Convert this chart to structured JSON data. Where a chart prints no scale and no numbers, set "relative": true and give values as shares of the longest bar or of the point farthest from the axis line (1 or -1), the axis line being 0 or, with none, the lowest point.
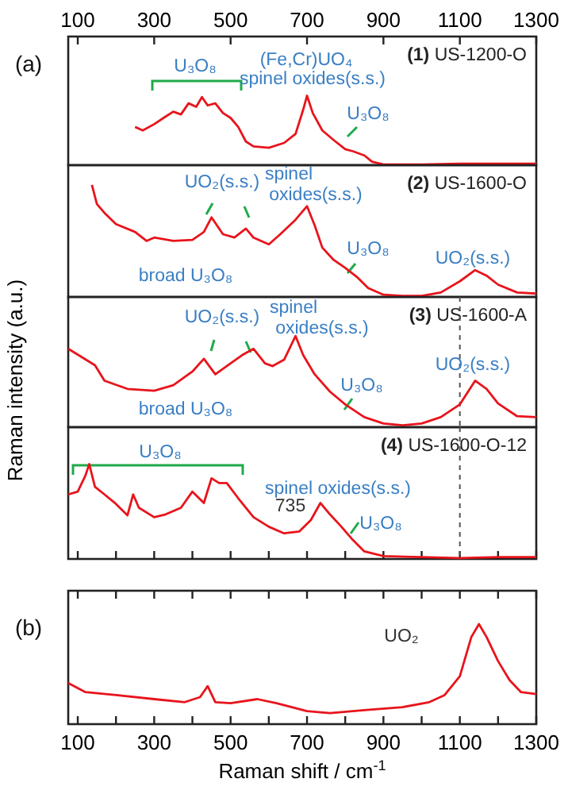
{
  "chart_data": [
    {
      "type": "line",
      "relative": true,
      "title": "(1) US-1200-O",
      "tick_labels": false,
      "xlim": [
        75,
        1300
      ],
      "x2lim": [
        75,
        1300
      ],
      "x2ticks": [
        100,
        300,
        500,
        700,
        900,
        1100,
        1300
      ],
      "series": [
        {
          "color": "#e8141c",
          "x": [
            250,
            270,
            300,
            330,
            350,
            370,
            390,
            410,
            425,
            440,
            460,
            480,
            500,
            520,
            540,
            560,
            600,
            640,
            670,
            690,
            700,
            715,
            740,
            770,
            800,
            820,
            850,
            870,
            900,
            1000,
            1100,
            1200,
            1300
          ],
          "values": [
            0.55,
            0.5,
            0.59,
            0.7,
            0.77,
            0.73,
            0.89,
            0.84,
            0.98,
            0.86,
            0.89,
            0.75,
            0.68,
            0.55,
            0.34,
            0.27,
            0.25,
            0.32,
            0.45,
            0.8,
            1,
            0.75,
            0.5,
            0.36,
            0.23,
            0.2,
            0.14,
            0.05,
            0.01,
            0.01,
            0.02,
            0.02,
            0.02
          ]
        }
      ],
      "annotations": [
        "(a)",
        "U₃O₈",
        "(Fe,Cr)UO₄",
        "spinel oxides(s.s.)",
        "U₃O₈"
      ]
    },
    {
      "type": "line",
      "relative": true,
      "title": "(2) US-1600-O",
      "tick_labels": false,
      "xlim": [
        75,
        1300
      ],
      "series": [
        {
          "color": "#e8141c",
          "x": [
            137,
            150,
            170,
            200,
            250,
            280,
            300,
            350,
            400,
            430,
            450,
            480,
            510,
            540,
            560,
            600,
            630,
            670,
            700,
            720,
            740,
            770,
            800,
            830,
            860,
            900,
            950,
            1000,
            1050,
            1100,
            1140,
            1170,
            1200,
            1250,
            1300
          ],
          "values": [
            1,
            0.83,
            0.75,
            0.65,
            0.58,
            0.5,
            0.53,
            0.5,
            0.51,
            0.58,
            0.71,
            0.56,
            0.53,
            0.61,
            0.53,
            0.47,
            0.56,
            0.69,
            0.81,
            0.64,
            0.44,
            0.33,
            0.26,
            0.18,
            0.08,
            0.02,
            0.01,
            0.01,
            0.04,
            0.14,
            0.24,
            0.19,
            0.11,
            0.04,
            0.03
          ]
        }
      ],
      "annotations": [
        "UO₂(s.s.)",
        "spinel",
        "oxides(s.s.)",
        "U₃O₈",
        "UO₂(s.s.)",
        "broad U₃O₈"
      ]
    },
    {
      "type": "line",
      "relative": true,
      "title": "(3) US-1600-A",
      "tick_labels": false,
      "xlim": [
        75,
        1300
      ],
      "ylabel": "Raman intensity (a.u.)",
      "series": [
        {
          "color": "#e8141c",
          "x": [
            75,
            145,
            170,
            230,
            300,
            350,
            400,
            430,
            460,
            500,
            530,
            560,
            590,
            610,
            640,
            670,
            690,
            720,
            760,
            800,
            850,
            900,
            950,
            1000,
            1050,
            1100,
            1140,
            1170,
            1200,
            1250,
            1300
          ],
          "values": [
            0.86,
            0.68,
            0.51,
            0.42,
            0.4,
            0.46,
            0.61,
            0.75,
            0.58,
            0.7,
            0.79,
            0.86,
            0.7,
            0.67,
            0.74,
            1,
            0.79,
            0.58,
            0.39,
            0.25,
            0.11,
            0.04,
            0.02,
            0.04,
            0.11,
            0.25,
            0.51,
            0.42,
            0.26,
            0.12,
            0.11
          ]
        }
      ],
      "ref_lines": [
        {
          "axis": "x",
          "value": 1100,
          "color": "#555555",
          "line_style": "dashed"
        }
      ],
      "annotations": [
        "UO₂(s.s.)",
        "spinel",
        "oxides(s.s.)",
        "U₃O₈",
        "UO₂(s.s.)",
        "broad U₃O₈"
      ]
    },
    {
      "type": "line",
      "relative": true,
      "title": "(4) US-1600-O-12",
      "tick_labels": false,
      "xlim": [
        75,
        1300
      ],
      "xticks": [
        100,
        {
          "value": 200,
          "label": null
        },
        300,
        {
          "value": 400,
          "label": null
        },
        500,
        {
          "value": 600,
          "label": null
        },
        700,
        {
          "value": 800,
          "label": null
        },
        900,
        {
          "value": 1000,
          "label": null
        },
        1100,
        {
          "value": 1200,
          "label": null
        },
        1300
      ],
      "series": [
        {
          "color": "#e8141c",
          "x": [
            75,
            100,
            120,
            130,
            145,
            170,
            200,
            230,
            245,
            260,
            300,
            330,
            370,
            400,
            430,
            450,
            470,
            490,
            520,
            560,
            600,
            640,
            680,
            710,
            735,
            760,
            790,
            820,
            850,
            900,
            1000,
            1100,
            1200,
            1300
          ],
          "values": [
            0.68,
            0.71,
            0.88,
            1,
            0.76,
            0.68,
            0.58,
            0.46,
            0.68,
            0.54,
            0.44,
            0.47,
            0.54,
            0.71,
            0.59,
            0.85,
            0.8,
            0.8,
            0.64,
            0.44,
            0.34,
            0.27,
            0.29,
            0.41,
            0.59,
            0.47,
            0.34,
            0.2,
            0.08,
            0.03,
            0.02,
            0.01,
            0.02,
            0.02
          ]
        }
      ],
      "ref_lines": [
        {
          "axis": "x",
          "value": 1100,
          "color": "#555555",
          "line_style": "dashed"
        }
      ],
      "annotations": [
        "U₃O₈",
        "spinel oxides(s.s.)",
        "735",
        "U₃O₈"
      ]
    },
    {
      "type": "line",
      "relative": true,
      "tick_labels": "x",
      "xlim": [
        75,
        1300
      ],
      "xlabel": "Raman shift / cm$^{-1}$",
      "xticks": [
        100,
        {
          "value": 200,
          "label": null
        },
        300,
        {
          "value": 400,
          "label": null
        },
        500,
        {
          "value": 600,
          "label": null
        },
        700,
        {
          "value": 800,
          "label": null
        },
        900,
        {
          "value": 1000,
          "label": null
        },
        1100,
        {
          "value": 1200,
          "label": null
        },
        1300
      ],
      "series": [
        {
          "color": "#e8141c",
          "x": [
            75,
            120,
            200,
            300,
            380,
            420,
            440,
            460,
            500,
            570,
            620,
            700,
            760,
            850,
            950,
            1020,
            1060,
            1100,
            1130,
            1150,
            1170,
            1200,
            1230,
            1260,
            1300
          ],
          "values": [
            0.41,
            0.32,
            0.29,
            0.25,
            0.22,
            0.27,
            0.38,
            0.22,
            0.21,
            0.25,
            0.21,
            0.13,
            0.11,
            0.14,
            0.17,
            0.22,
            0.29,
            0.48,
            0.87,
            1,
            0.87,
            0.63,
            0.44,
            0.32,
            0.3
          ]
        }
      ],
      "annotations": [
        "(b)",
        "UO₂"
      ]
    }
  ]
}
